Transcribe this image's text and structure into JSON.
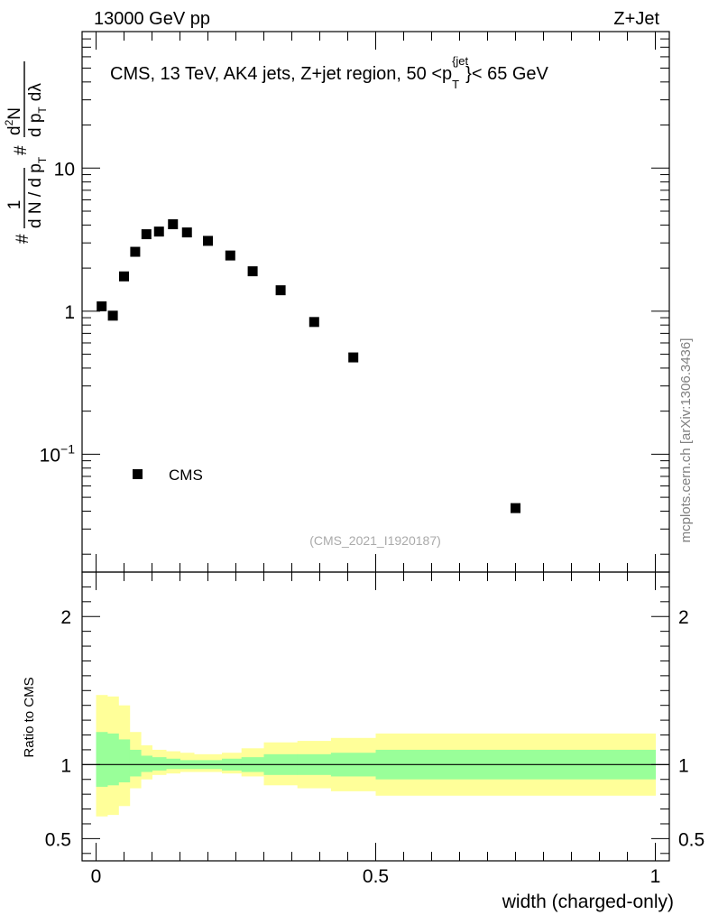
{
  "header": {
    "energy_label": "13000 GeV pp",
    "process_label": "Z+Jet"
  },
  "watermark": "mcplots.cern.ch [arXiv:1306.3436]",
  "analysis_ref": "(CMS_2021_I1920187)",
  "colors": {
    "marker": "#000000",
    "band_outer": "#ffff99",
    "band_inner": "#99ff99",
    "ref_text": "#aaaaaa",
    "watermark": "#808080"
  },
  "chart_data": [
    {
      "type": "scatter",
      "name": "main-panel",
      "title": "CMS, 13 TeV, AK4 jets, Z+jet region, 50 <p_T^{jet}< 65 GeV",
      "title_parts": {
        "prefix": "CMS, 13 TeV, AK4 jets, Z+jet region, 50 <p",
        "sub": "T",
        "sup": "{jet",
        "suffix": "}< 65 GeV"
      },
      "ylabel": "# 1/(d N / d p_T #) d²N/(d p_T dλ)",
      "ylabel_parts": {
        "hash": "#",
        "one": "1",
        "den1": "d N / d p",
        "sub": "T",
        "num2": "d",
        "num2_sup": "2",
        "num2_tail": "N",
        "den2": "d p",
        "den2_tail": "dλ"
      },
      "yscale": "log",
      "ylim": [
        0.015,
        90
      ],
      "xlim": [
        -0.025,
        1.025
      ],
      "y_ticks": [
        {
          "value": 10,
          "label": "10"
        },
        {
          "value": 1,
          "label": "1"
        },
        {
          "value": 0.1,
          "label": "10",
          "sup": "−1"
        }
      ],
      "legend": {
        "label": "CMS",
        "position": "bottom-left"
      },
      "series": [
        {
          "name": "CMS",
          "x": [
            0.01,
            0.03,
            0.05,
            0.07,
            0.09,
            0.1125,
            0.1375,
            0.1625,
            0.2,
            0.24,
            0.28,
            0.33,
            0.39,
            0.46,
            0.75
          ],
          "y": [
            1.08,
            0.93,
            1.75,
            2.6,
            3.45,
            3.6,
            4.05,
            3.55,
            3.1,
            2.45,
            1.9,
            1.4,
            0.84,
            0.475,
            0.042
          ]
        }
      ]
    },
    {
      "type": "area",
      "name": "ratio-panel",
      "ylabel": "Ratio to CMS",
      "xlabel": "width (charged-only)",
      "ylim": [
        0.35,
        2.3
      ],
      "xlim": [
        -0.025,
        1.025
      ],
      "x_ticks": [
        {
          "value": 0,
          "label": "0"
        },
        {
          "value": 0.5,
          "label": "0.5"
        },
        {
          "value": 1,
          "label": "1"
        }
      ],
      "y_ticks": [
        {
          "value": 2,
          "label": "2"
        },
        {
          "value": 1,
          "label": "1"
        },
        {
          "value": 0.5,
          "label": "0.5"
        }
      ],
      "reference_line": 1,
      "bin_edges": [
        0,
        0.02,
        0.04,
        0.06,
        0.08,
        0.1,
        0.125,
        0.15,
        0.175,
        0.225,
        0.26,
        0.3,
        0.36,
        0.42,
        0.5,
        1.0
      ],
      "outer_band": {
        "low": [
          0.65,
          0.66,
          0.72,
          0.84,
          0.9,
          0.93,
          0.94,
          0.95,
          0.95,
          0.94,
          0.92,
          0.86,
          0.84,
          0.82,
          0.79
        ],
        "high": [
          1.47,
          1.46,
          1.4,
          1.22,
          1.13,
          1.1,
          1.09,
          1.08,
          1.07,
          1.08,
          1.11,
          1.15,
          1.16,
          1.18,
          1.21
        ]
      },
      "inner_band": {
        "low": [
          0.85,
          0.86,
          0.88,
          0.92,
          0.95,
          0.96,
          0.97,
          0.97,
          0.97,
          0.96,
          0.95,
          0.93,
          0.93,
          0.92,
          0.9
        ],
        "high": [
          1.22,
          1.21,
          1.17,
          1.1,
          1.06,
          1.05,
          1.04,
          1.03,
          1.03,
          1.04,
          1.05,
          1.07,
          1.07,
          1.08,
          1.1
        ]
      }
    }
  ]
}
